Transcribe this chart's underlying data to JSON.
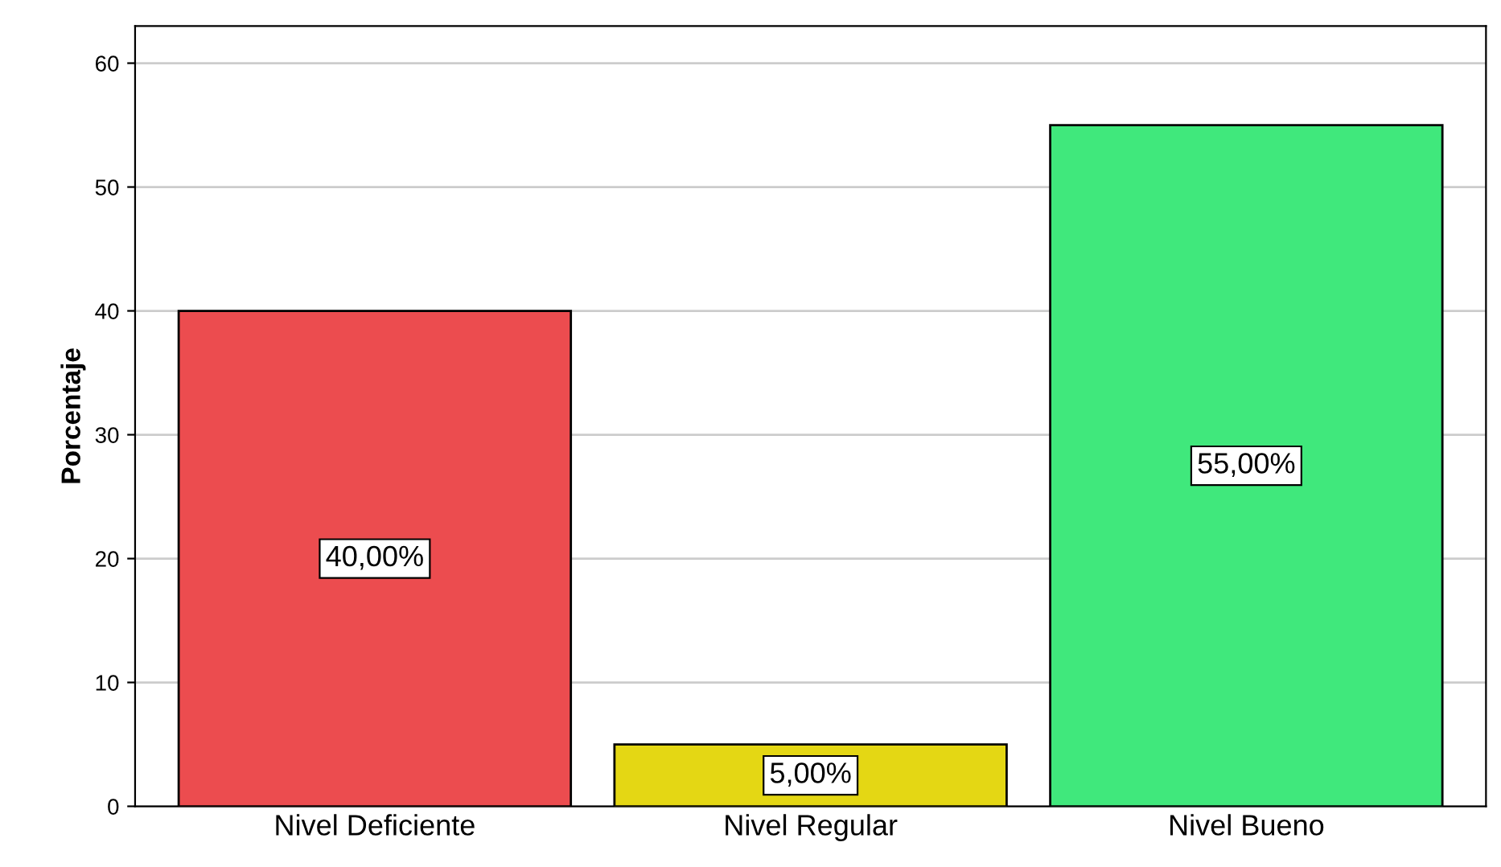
{
  "chart_data": {
    "type": "bar",
    "ylabel": "Porcentaje",
    "categories": [
      "Nivel Deficiente",
      "Nivel Regular",
      "Nivel Bueno"
    ],
    "values": [
      40,
      5,
      55
    ],
    "value_labels": [
      "40,00%",
      "5,00%",
      "55,00%"
    ],
    "colors": [
      "#ec4c4f",
      "#e4d714",
      "#40e87c"
    ],
    "ylim": [
      0,
      63
    ],
    "yticks": [
      0,
      10,
      20,
      30,
      40,
      50,
      60
    ],
    "grid": "y"
  }
}
